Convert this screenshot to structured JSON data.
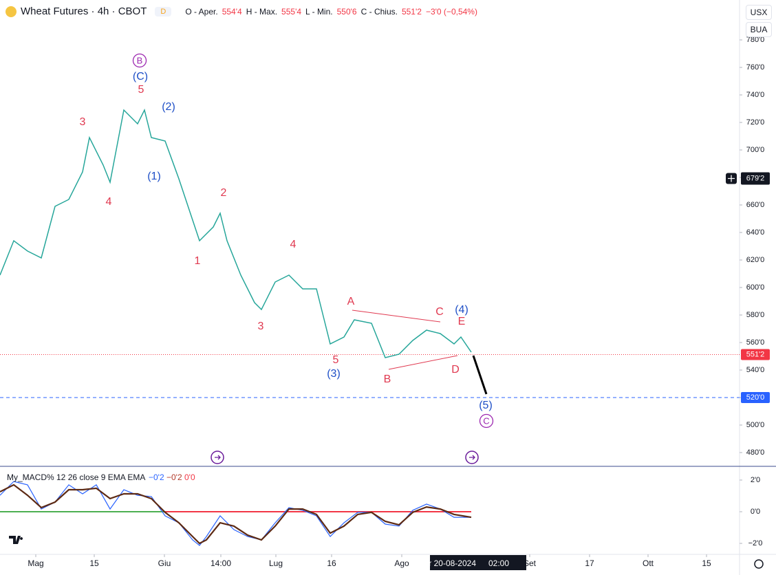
{
  "header": {
    "symbol": "Wheat Futures · 4h · CBOT",
    "badge": "D",
    "open_label": "O - Aper.",
    "open": "554'4",
    "high_label": "H - Max.",
    "high": "555'4",
    "low_label": "L - Min.",
    "low": "550'6",
    "close_label": "C - Chius.",
    "close": "551'2",
    "change": "−3'0 (−0,54%)",
    "currency": "USX",
    "unit": "BUA"
  },
  "chart_data": [
    {
      "type": "line",
      "xlim": [
        0,
        107.5
      ],
      "xticks": [
        {
          "value": 5.2,
          "label": "Mag"
        },
        {
          "value": 13.7,
          "label": "15"
        },
        {
          "value": 23.9,
          "label": "Giu"
        },
        {
          "value": 32.1,
          "label": "14:00"
        },
        {
          "value": 40.1,
          "label": "Lug"
        },
        {
          "value": 48.2,
          "label": "16"
        },
        {
          "value": 58.4,
          "label": "Ago"
        },
        {
          "value": 77,
          "label": "Set"
        },
        {
          "value": 85.7,
          "label": "17"
        },
        {
          "value": 94.2,
          "label": "Ott"
        },
        {
          "value": 102.7,
          "label": "15"
        }
      ],
      "ylim": [
        470,
        789
      ],
      "yticks": [
        {
          "value": 480,
          "label": "480'0"
        },
        {
          "value": 500,
          "label": "500'0"
        },
        {
          "value": 520,
          "label": "520'0"
        },
        {
          "value": 540,
          "label": "540'0"
        },
        {
          "value": 560,
          "label": "560'0"
        },
        {
          "value": 580,
          "label": "580'0"
        },
        {
          "value": 600,
          "label": "600'0"
        },
        {
          "value": 620,
          "label": "620'0"
        },
        {
          "value": 640,
          "label": "640'0"
        },
        {
          "value": 660,
          "label": "660'0"
        },
        {
          "value": 680,
          "label": "680'0"
        },
        {
          "value": 700,
          "label": "700'0"
        },
        {
          "value": 720,
          "label": "720'0"
        },
        {
          "value": 740,
          "label": "740'0"
        },
        {
          "value": 760,
          "label": "760'0"
        },
        {
          "value": 780,
          "label": "780'0"
        }
      ],
      "x": [
        0,
        2,
        4,
        6,
        8,
        10,
        12,
        13,
        15,
        16,
        18,
        20,
        21,
        22,
        24,
        26,
        28,
        29,
        31,
        32,
        33,
        35,
        37,
        38,
        40,
        42,
        44,
        46,
        47,
        48,
        50,
        51.5,
        54,
        56,
        58,
        60,
        62,
        64,
        66,
        67,
        68.5
      ],
      "series": [
        {
          "color": "#26a69a",
          "values": [
            609,
            634,
            626.5,
            621.5,
            659,
            664,
            684,
            709,
            689,
            676.5,
            729,
            719,
            729,
            709,
            706.5,
            679,
            649,
            634,
            644,
            654,
            634,
            609,
            589,
            584,
            604,
            609,
            599,
            599,
            579,
            559,
            564,
            576.5,
            574,
            549,
            551.5,
            561.5,
            569,
            566.5,
            559,
            564,
            553
          ]
        }
      ],
      "projection": {
        "color": "#000000",
        "x": [
          68.8,
          70.7
        ],
        "values": [
          550.5,
          522.5
        ]
      },
      "price_lines": [
        {
          "value": 551.25,
          "label": "551'2",
          "color": "#f23645"
        },
        {
          "value": 520,
          "label": "520'0",
          "color": "#2962ff"
        }
      ],
      "crosshair": {
        "x": 69.5,
        "date": "mar 20-08-2024",
        "time": "02:00",
        "value": 679.25,
        "label": "679'2"
      },
      "wave_labels": [
        {
          "text": "B",
          "color": "#9c27b0",
          "circled": true
        },
        {
          "text": "(C)",
          "color": "#1e4fc7"
        },
        {
          "text": "5",
          "color": "#e0384f"
        },
        {
          "text": "3",
          "color": "#e0384f"
        },
        {
          "text": "4",
          "color": "#e0384f"
        },
        {
          "text": "(2)",
          "color": "#1e4fc7"
        },
        {
          "text": "(1)",
          "color": "#1e4fc7"
        },
        {
          "text": "2",
          "color": "#e0384f"
        },
        {
          "text": "1",
          "color": "#e0384f"
        },
        {
          "text": "4",
          "color": "#e0384f"
        },
        {
          "text": "3",
          "color": "#e0384f"
        },
        {
          "text": "5",
          "color": "#e0384f"
        },
        {
          "text": "(3)",
          "color": "#1e4fc7"
        },
        {
          "text": "A",
          "color": "#e0384f"
        },
        {
          "text": "B",
          "color": "#e0384f"
        },
        {
          "text": "C",
          "color": "#e0384f"
        },
        {
          "text": "(4)",
          "color": "#1e4fc7"
        },
        {
          "text": "E",
          "color": "#e0384f"
        },
        {
          "text": "D",
          "color": "#e0384f"
        },
        {
          "text": "(5)",
          "color": "#1e4fc7"
        },
        {
          "text": "C",
          "color": "#9c27b0",
          "circled": true
        }
      ]
    },
    {
      "type": "line",
      "ylim": [
        -2.65,
        2.78
      ],
      "yticks": [
        {
          "value": -2,
          "label": "−2'0"
        },
        {
          "value": 0,
          "label": "0'0"
        },
        {
          "value": 2,
          "label": "2'0"
        }
      ],
      "legend": "My_MACD% 12 26 close 9 EMA EMA",
      "legend_values": [
        {
          "text": "−0'2",
          "color": "#2962ff"
        },
        {
          "text": "−0'2",
          "color": "#b33a2a"
        },
        {
          "text": "0'0",
          "color": "#f23645"
        }
      ],
      "zero_colors": [
        "#4caf50",
        "#f23645"
      ],
      "x": [
        0,
        2,
        4,
        6,
        8,
        10,
        12,
        14,
        16,
        18,
        20,
        22,
        24,
        26,
        28,
        29,
        30,
        32,
        34,
        36,
        38,
        40,
        42,
        44,
        46,
        48,
        50,
        52,
        54,
        56,
        58,
        60,
        62,
        64,
        66,
        68.5
      ],
      "series": [
        {
          "color": "#2962ff",
          "values": [
            1.04,
            1.91,
            1.7,
            0.17,
            0.61,
            1.7,
            1.13,
            1.7,
            0.17,
            1.39,
            1.04,
            0.96,
            -0.26,
            -0.7,
            -1.78,
            -2.13,
            -1.57,
            -0.26,
            -1.13,
            -1.57,
            -1.78,
            -0.7,
            0.26,
            0.09,
            -0.26,
            -1.57,
            -0.7,
            -0.04,
            -0.04,
            -0.78,
            -0.91,
            0.09,
            0.48,
            0.17,
            -0.35,
            -0.35
          ]
        },
        {
          "color": "#5d2a14",
          "values": [
            1.26,
            1.7,
            1.04,
            0.26,
            0.61,
            1.39,
            1.39,
            1.48,
            0.83,
            1.13,
            1.13,
            0.83,
            -0.04,
            -0.7,
            -1.57,
            -2.0,
            -1.78,
            -0.7,
            -0.91,
            -1.48,
            -1.78,
            -0.91,
            0.17,
            0.17,
            -0.17,
            -1.35,
            -0.91,
            -0.17,
            -0.04,
            -0.61,
            -0.83,
            -0.04,
            0.3,
            0.17,
            -0.17,
            -0.35
          ]
        }
      ]
    }
  ]
}
